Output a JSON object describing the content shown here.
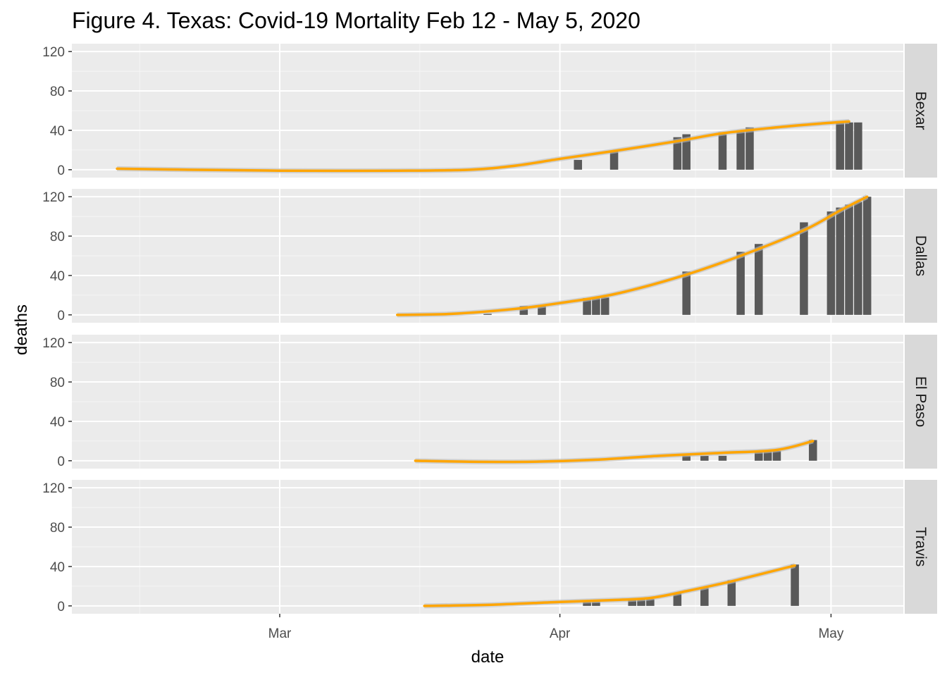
{
  "chart_data": {
    "type": "bar",
    "title": "Figure 4. Texas: Covid-19 Mortality Feb 12 - May 5, 2020",
    "xlabel": "date",
    "ylabel": "deaths",
    "x_ticks": [
      {
        "label": "Mar",
        "date": "2020-03-01"
      },
      {
        "label": "Apr",
        "date": "2020-04-01"
      },
      {
        "label": "May",
        "date": "2020-05-01"
      }
    ],
    "x_range": [
      "2020-02-07",
      "2020-05-09"
    ],
    "y_ticks": [
      0,
      40,
      80,
      120
    ],
    "ylim": [
      -8,
      128
    ],
    "grid": true,
    "bar_color": "#595959",
    "trend_color": "#FFA500",
    "panel_background": "#EBEBEB",
    "strip_background": "#D9D9D9",
    "panels": [
      {
        "name": "Bexar",
        "bars": [
          {
            "date": "2020-04-03",
            "value": 10
          },
          {
            "date": "2020-04-07",
            "value": 19
          },
          {
            "date": "2020-04-14",
            "value": 33
          },
          {
            "date": "2020-04-15",
            "value": 36
          },
          {
            "date": "2020-04-19",
            "value": 38
          },
          {
            "date": "2020-04-21",
            "value": 40
          },
          {
            "date": "2020-04-22",
            "value": 43
          },
          {
            "date": "2020-05-02",
            "value": 48
          },
          {
            "date": "2020-05-03",
            "value": 48
          },
          {
            "date": "2020-05-04",
            "value": 48
          }
        ],
        "trend": [
          {
            "date": "2020-02-12",
            "value": 1
          },
          {
            "date": "2020-02-20",
            "value": 0
          },
          {
            "date": "2020-03-01",
            "value": -1
          },
          {
            "date": "2020-03-14",
            "value": -1
          },
          {
            "date": "2020-03-22",
            "value": 0
          },
          {
            "date": "2020-03-27",
            "value": 4
          },
          {
            "date": "2020-04-01",
            "value": 11
          },
          {
            "date": "2020-04-07",
            "value": 19
          },
          {
            "date": "2020-04-14",
            "value": 29
          },
          {
            "date": "2020-04-19",
            "value": 37
          },
          {
            "date": "2020-04-25",
            "value": 43
          },
          {
            "date": "2020-04-30",
            "value": 47
          },
          {
            "date": "2020-05-03",
            "value": 49
          }
        ]
      },
      {
        "name": "Dallas",
        "bars": [
          {
            "date": "2020-03-24",
            "value": 1
          },
          {
            "date": "2020-03-28",
            "value": 9
          },
          {
            "date": "2020-03-30",
            "value": 10
          },
          {
            "date": "2020-04-04",
            "value": 17
          },
          {
            "date": "2020-04-05",
            "value": 18
          },
          {
            "date": "2020-04-06",
            "value": 18
          },
          {
            "date": "2020-04-15",
            "value": 44
          },
          {
            "date": "2020-04-21",
            "value": 64
          },
          {
            "date": "2020-04-23",
            "value": 72
          },
          {
            "date": "2020-04-28",
            "value": 94
          },
          {
            "date": "2020-05-01",
            "value": 105
          },
          {
            "date": "2020-05-02",
            "value": 109
          },
          {
            "date": "2020-05-03",
            "value": 112
          },
          {
            "date": "2020-05-04",
            "value": 115
          },
          {
            "date": "2020-05-05",
            "value": 120
          }
        ],
        "trend": [
          {
            "date": "2020-03-14",
            "value": 0
          },
          {
            "date": "2020-03-20",
            "value": 1
          },
          {
            "date": "2020-03-27",
            "value": 6
          },
          {
            "date": "2020-04-01",
            "value": 12
          },
          {
            "date": "2020-04-07",
            "value": 21
          },
          {
            "date": "2020-04-14",
            "value": 38
          },
          {
            "date": "2020-04-21",
            "value": 60
          },
          {
            "date": "2020-04-28",
            "value": 86
          },
          {
            "date": "2020-05-02",
            "value": 106
          },
          {
            "date": "2020-05-05",
            "value": 120
          }
        ]
      },
      {
        "name": "El Paso",
        "bars": [
          {
            "date": "2020-04-15",
            "value": 5
          },
          {
            "date": "2020-04-17",
            "value": 5
          },
          {
            "date": "2020-04-19",
            "value": 5
          },
          {
            "date": "2020-04-23",
            "value": 10
          },
          {
            "date": "2020-04-24",
            "value": 10
          },
          {
            "date": "2020-04-25",
            "value": 10
          },
          {
            "date": "2020-04-29",
            "value": 21
          }
        ],
        "trend": [
          {
            "date": "2020-03-16",
            "value": 0
          },
          {
            "date": "2020-03-22",
            "value": -1
          },
          {
            "date": "2020-03-29",
            "value": -1
          },
          {
            "date": "2020-04-05",
            "value": 1
          },
          {
            "date": "2020-04-12",
            "value": 5
          },
          {
            "date": "2020-04-19",
            "value": 8
          },
          {
            "date": "2020-04-25",
            "value": 11
          },
          {
            "date": "2020-04-29",
            "value": 20
          }
        ]
      },
      {
        "name": "Travis",
        "bars": [
          {
            "date": "2020-04-04",
            "value": 4
          },
          {
            "date": "2020-04-05",
            "value": 4
          },
          {
            "date": "2020-04-09",
            "value": 7
          },
          {
            "date": "2020-04-10",
            "value": 7
          },
          {
            "date": "2020-04-11",
            "value": 7
          },
          {
            "date": "2020-04-14",
            "value": 13
          },
          {
            "date": "2020-04-17",
            "value": 19
          },
          {
            "date": "2020-04-20",
            "value": 26
          },
          {
            "date": "2020-04-27",
            "value": 42
          }
        ],
        "trend": [
          {
            "date": "2020-03-17",
            "value": 0
          },
          {
            "date": "2020-03-24",
            "value": 1
          },
          {
            "date": "2020-04-01",
            "value": 4
          },
          {
            "date": "2020-04-07",
            "value": 6
          },
          {
            "date": "2020-04-11",
            "value": 8
          },
          {
            "date": "2020-04-15",
            "value": 15
          },
          {
            "date": "2020-04-20",
            "value": 25
          },
          {
            "date": "2020-04-27",
            "value": 41
          }
        ]
      }
    ]
  }
}
